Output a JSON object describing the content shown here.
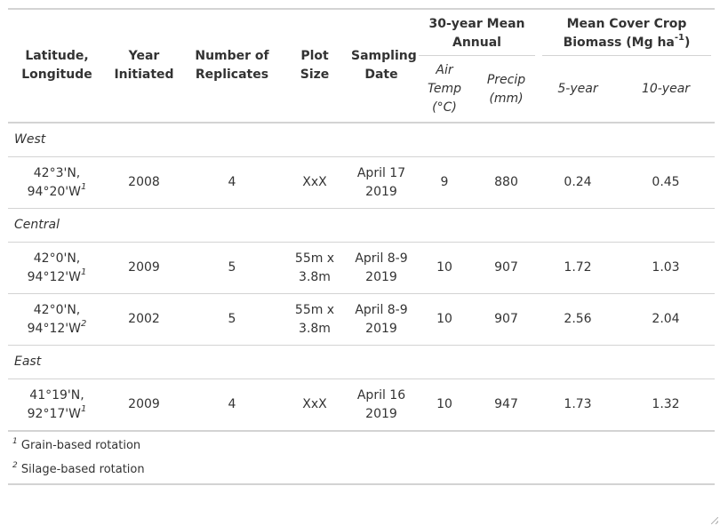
{
  "header": {
    "lat_long": "Latitude, Longitude",
    "year_initiated": "Year Initiated",
    "replicates": "Number of Replicates",
    "plot_size": "Plot Size",
    "sampling_date": "Sampling Date",
    "climate_group": "30-year Mean Annual",
    "air_temp": "Air Temp (°C)",
    "precip": "Precip (mm)",
    "biomass_group_prefix": "Mean Cover Crop Biomass (Mg ha",
    "biomass_group_sup": "-1",
    "biomass_group_suffix": ")",
    "five_year": "5-year",
    "ten_year": "10-year"
  },
  "groups": [
    {
      "name": "West",
      "rows": [
        {
          "coord": "42°3'N, 94°20'W",
          "fn": "1",
          "year": "2008",
          "replicates": "4",
          "plot": "XxX",
          "date": "April 17 2019",
          "air": "9",
          "precip": "880",
          "b5": "0.24",
          "b10": "0.45"
        }
      ]
    },
    {
      "name": "Central",
      "rows": [
        {
          "coord": "42°0'N, 94°12'W",
          "fn": "1",
          "year": "2009",
          "replicates": "5",
          "plot": "55m x 3.8m",
          "date": "April 8-9 2019",
          "air": "10",
          "precip": "907",
          "b5": "1.72",
          "b10": "1.03"
        },
        {
          "coord": "42°0'N, 94°12'W",
          "fn": "2",
          "year": "2002",
          "replicates": "5",
          "plot": "55m x 3.8m",
          "date": "April 8-9 2019",
          "air": "10",
          "precip": "907",
          "b5": "2.56",
          "b10": "2.04"
        }
      ]
    },
    {
      "name": "East",
      "rows": [
        {
          "coord": "41°19'N, 92°17'W",
          "fn": "1",
          "year": "2009",
          "replicates": "4",
          "plot": "XxX",
          "date": "April 16 2019",
          "air": "10",
          "precip": "947",
          "b5": "1.73",
          "b10": "1.32"
        }
      ]
    }
  ],
  "footnotes": [
    {
      "mark": "1",
      "text": "Grain-based rotation"
    },
    {
      "mark": "2",
      "text": "Silage-based rotation"
    }
  ]
}
